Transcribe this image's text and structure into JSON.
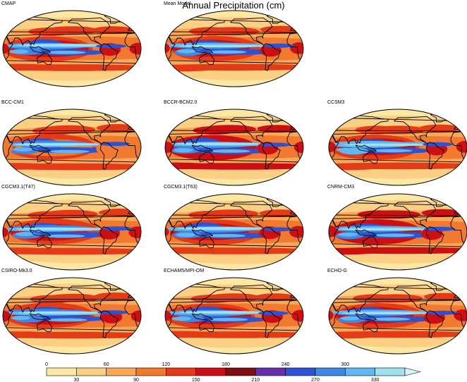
{
  "title": "Annual Precipitation (cm)",
  "panels": [
    {
      "label": "CMAP",
      "row": 0,
      "col": 0,
      "variant": 0
    },
    {
      "label": "Mean Model",
      "row": 0,
      "col": 1,
      "variant": 1
    },
    {
      "label": "BCC-CM1",
      "row": 1,
      "col": 0,
      "variant": 2
    },
    {
      "label": "BCCR-BCM2.0",
      "row": 1,
      "col": 1,
      "variant": 3
    },
    {
      "label": "CCSM3",
      "row": 1,
      "col": 2,
      "variant": 4
    },
    {
      "label": "CGCM3.1(T47)",
      "row": 2,
      "col": 0,
      "variant": 5
    },
    {
      "label": "CGCM3.1(T63)",
      "row": 2,
      "col": 1,
      "variant": 6
    },
    {
      "label": "CNRM-CM3",
      "row": 2,
      "col": 2,
      "variant": 7
    },
    {
      "label": "CSIRO-Mk3.0",
      "row": 3,
      "col": 0,
      "variant": 8
    },
    {
      "label": "ECHAM5/MPI-OM",
      "row": 3,
      "col": 1,
      "variant": 9
    },
    {
      "label": "ECHO-G",
      "row": 3,
      "col": 2,
      "variant": 10
    }
  ],
  "colorbar": {
    "ticks_top": [
      "0",
      "60",
      "120",
      "180",
      "240",
      "300"
    ],
    "ticks_bottom": [
      "30",
      "90",
      "150",
      "210",
      "270",
      "330"
    ],
    "colors": [
      "#fde7a4",
      "#fcd084",
      "#f9a85a",
      "#f27a30",
      "#e33a18",
      "#cc0f14",
      "#7d0f10",
      "#6a2eaa",
      "#2f52d0",
      "#3f86e8",
      "#62b8ee",
      "#9fe1f0"
    ]
  }
}
